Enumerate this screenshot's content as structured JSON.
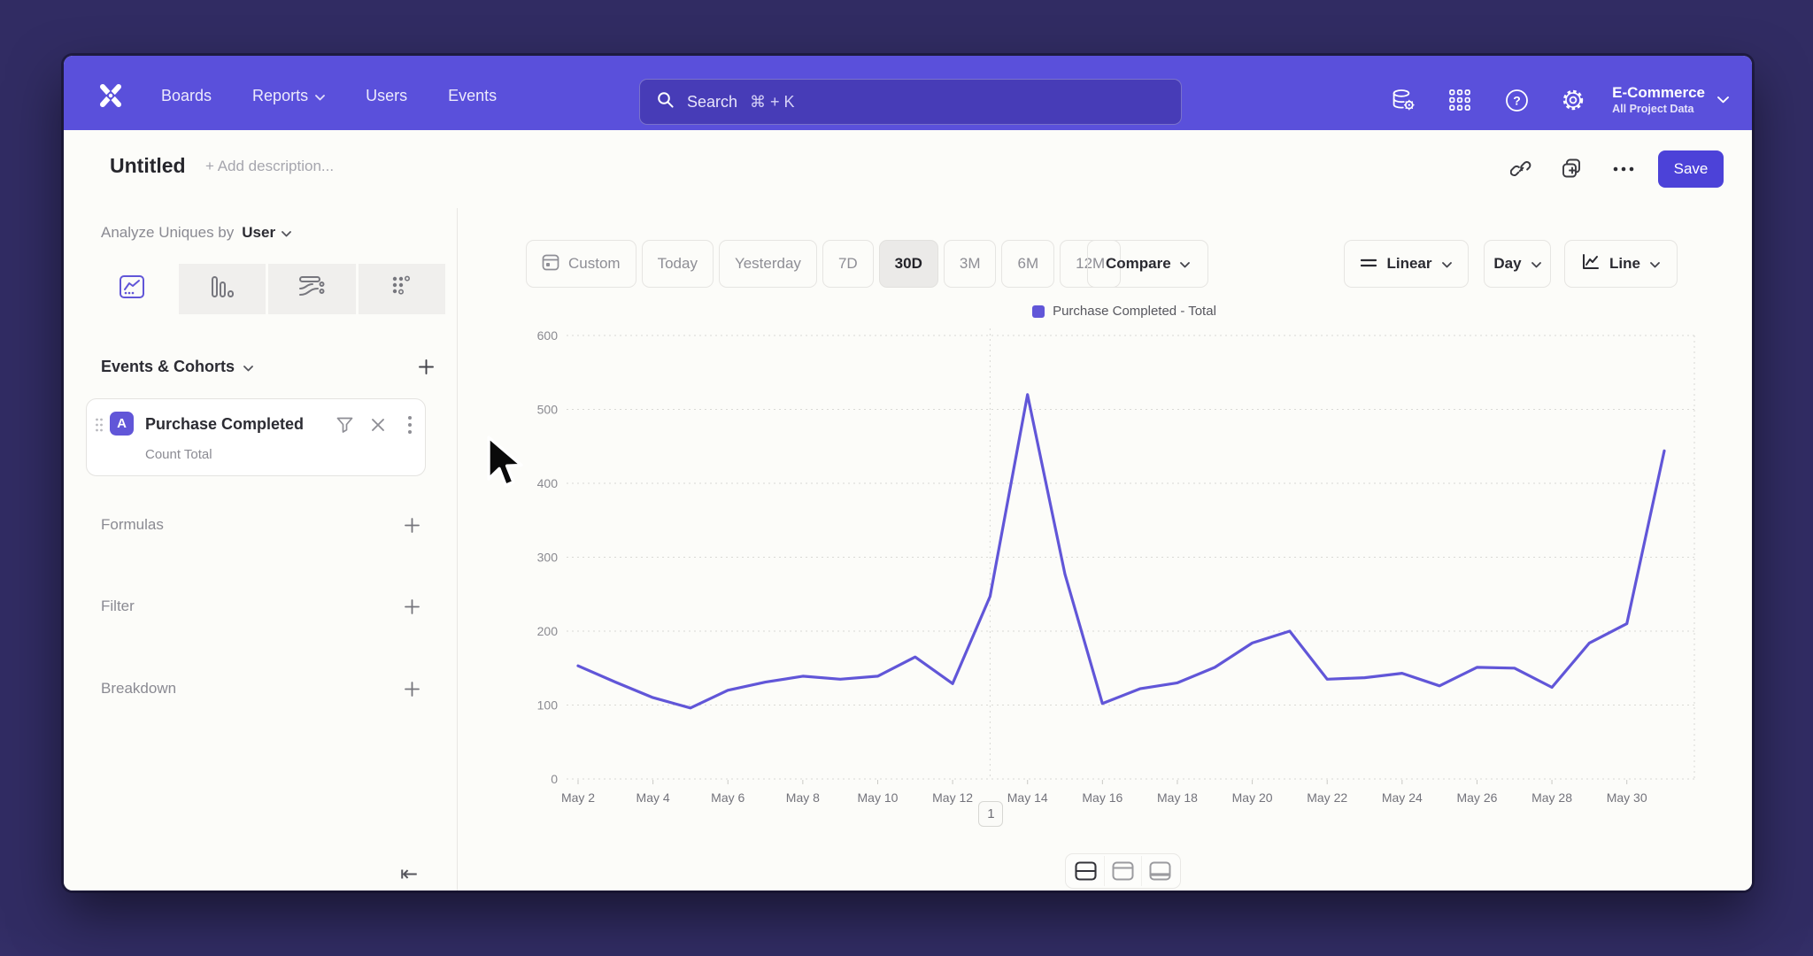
{
  "nav": {
    "logo_name": "mixpanel-logo",
    "items": [
      "Boards",
      "Reports",
      "Users",
      "Events"
    ],
    "search": {
      "placeholder": "Search",
      "shortcut": "⌘ + K"
    },
    "project": {
      "name": "E-Commerce",
      "scope": "All Project Data"
    }
  },
  "header": {
    "title": "Untitled",
    "description_placeholder": "+ Add description...",
    "save_label": "Save"
  },
  "sidebar": {
    "analyze_label": "Analyze Uniques by",
    "analyze_value": "User",
    "events_section_label": "Events & Cohorts",
    "event_card": {
      "badge": "A",
      "name": "Purchase Completed",
      "metric": "Count Total"
    },
    "rows": [
      {
        "label": "Formulas"
      },
      {
        "label": "Filter"
      },
      {
        "label": "Breakdown"
      }
    ],
    "collapse_icon": "⇤"
  },
  "toolbar": {
    "ranges": [
      "Custom",
      "Today",
      "Yesterday",
      "7D",
      "30D",
      "3M",
      "6M",
      "12M"
    ],
    "active_range": "30D",
    "compare_label": "Compare",
    "scale_label": "Linear",
    "interval_label": "Day",
    "chart_type_label": "Line"
  },
  "chart_data": {
    "type": "line",
    "legend": "Purchase Completed - Total",
    "x": [
      "May 2",
      "May 3",
      "May 4",
      "May 5",
      "May 6",
      "May 7",
      "May 8",
      "May 9",
      "May 10",
      "May 11",
      "May 12",
      "May 13",
      "May 14",
      "May 15",
      "May 16",
      "May 17",
      "May 18",
      "May 19",
      "May 20",
      "May 21",
      "May 22",
      "May 23",
      "May 24",
      "May 25",
      "May 26",
      "May 27",
      "May 28",
      "May 29",
      "May 30",
      "May 31"
    ],
    "values": [
      153,
      131,
      110,
      96,
      120,
      131,
      139,
      135,
      139,
      165,
      129,
      247,
      520,
      277,
      102,
      122,
      130,
      151,
      184,
      200,
      135,
      137,
      143,
      126,
      151,
      150,
      124,
      184,
      210,
      444
    ],
    "ylim": [
      0,
      600
    ],
    "yticks": [
      0,
      100,
      200,
      300,
      400,
      500,
      600
    ],
    "xtick_labels": [
      "May 2",
      "May 4",
      "May 6",
      "May 8",
      "May 10",
      "May 12",
      "May 14",
      "May 16",
      "May 18",
      "May 20",
      "May 22",
      "May 24",
      "May 26",
      "May 28",
      "May 30"
    ],
    "line_color": "#6156d8",
    "grid": true,
    "legend_position": "top-center",
    "annotation": {
      "x": "May 13",
      "label": "1"
    }
  },
  "colors": {
    "navbar": "#5a50db",
    "accent": "#4c42d8",
    "line": "#6156d8"
  }
}
